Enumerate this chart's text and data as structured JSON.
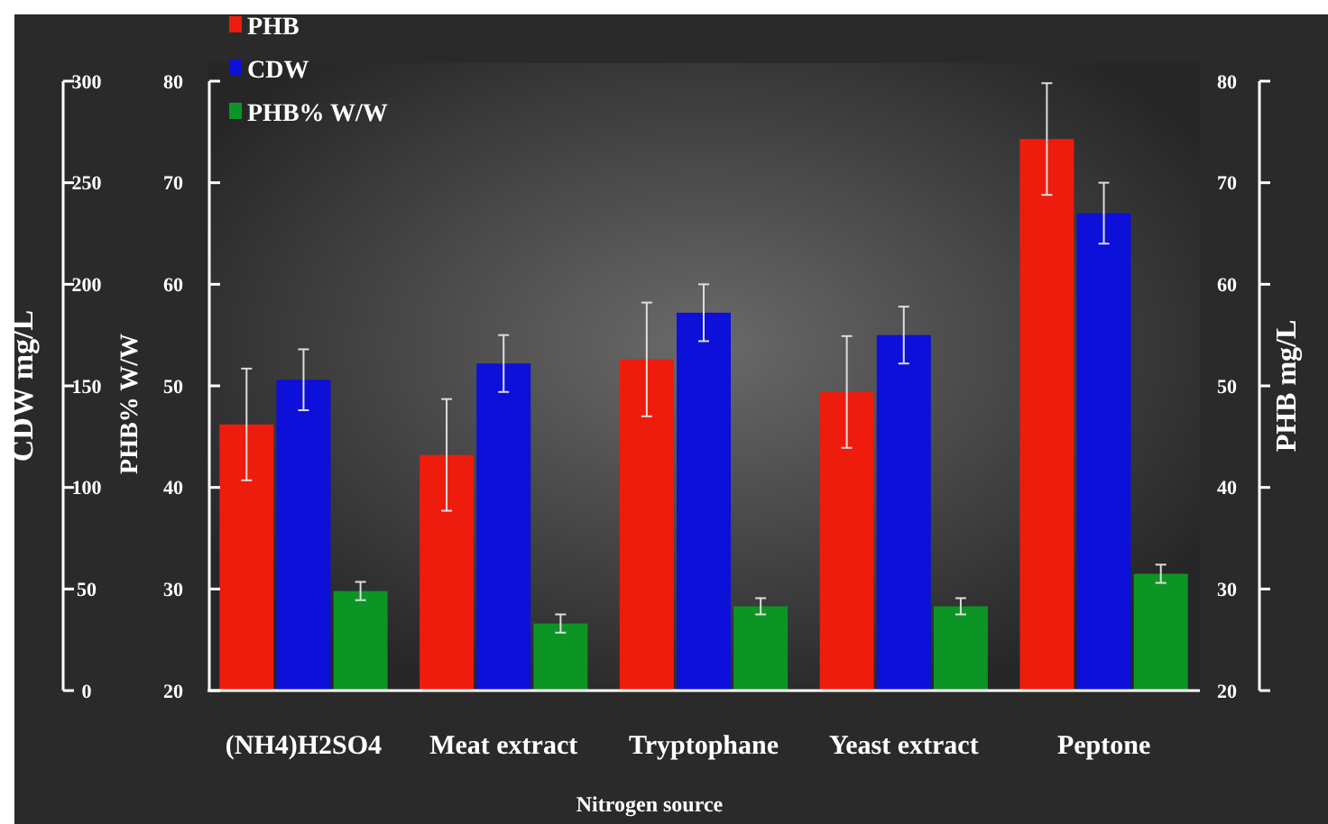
{
  "chart_data": {
    "type": "bar",
    "xlabel": "Nitrogen source",
    "ylabel": "PHB% W/W",
    "y2label": "PHB  mg/L",
    "y3label": "CDW mg/L",
    "categories": [
      "(NH4)H2SO4",
      "Meat extract",
      "Tryptophane",
      "Yeast extract",
      "Peptone"
    ],
    "series": [
      {
        "name": "PHB",
        "color": "#ee1c0c",
        "axis": "y2",
        "values": [
          46.2,
          43.2,
          52.6,
          49.4,
          74.3
        ],
        "errors": [
          5.5,
          5.5,
          5.6,
          5.5,
          5.5
        ]
      },
      {
        "name": "CDW",
        "color": "#0c10d8",
        "axis": "y3",
        "values": [
          153,
          161,
          186,
          175,
          235
        ],
        "errors": [
          15,
          14,
          14,
          14,
          15
        ]
      },
      {
        "name": "PHB% W/W",
        "color": "#0c9424",
        "axis": "y",
        "values": [
          29.8,
          26.6,
          28.3,
          28.3,
          31.5
        ],
        "errors": [
          0.9,
          0.9,
          0.8,
          0.8,
          0.9
        ]
      }
    ],
    "ylim": [
      20,
      80
    ],
    "yticks": [
      20,
      30,
      40,
      50,
      60,
      70,
      80
    ],
    "y2lim": [
      20,
      80
    ],
    "y2ticks": [
      20,
      30,
      40,
      50,
      60,
      70,
      80
    ],
    "y3lim": [
      0,
      300
    ],
    "y3ticks": [
      0,
      50,
      100,
      150,
      200,
      250,
      300
    ],
    "legend": "top left",
    "grid": false
  }
}
